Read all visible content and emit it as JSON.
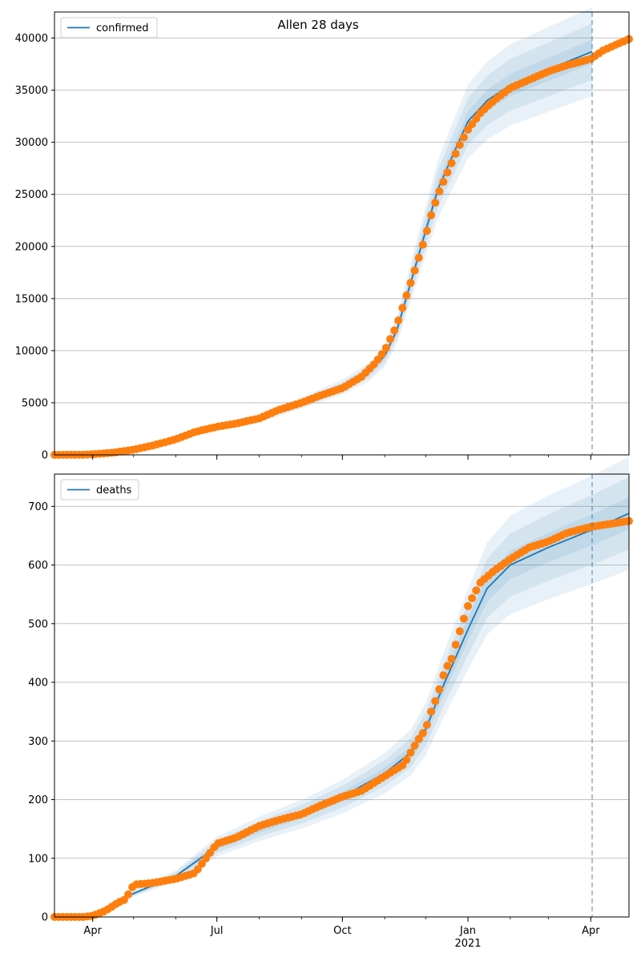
{
  "title": "Allen 28 days",
  "colors": {
    "model_line": "#1f77b4",
    "observed": "#ff7f0e",
    "band": "#1f77b4",
    "grid": "#b0b0b0",
    "forecast_line": "#1f77b4"
  },
  "x_ticks": [
    {
      "date": "2020-04-01",
      "label": "Apr",
      "sublabel": ""
    },
    {
      "date": "2020-07-01",
      "label": "Jul",
      "sublabel": ""
    },
    {
      "date": "2020-10-01",
      "label": "Oct",
      "sublabel": ""
    },
    {
      "date": "2021-01-01",
      "label": "Jan",
      "sublabel": "2021"
    },
    {
      "date": "2021-04-01",
      "label": "Apr",
      "sublabel": ""
    }
  ],
  "chart_data": [
    {
      "type": "line",
      "legend": "confirmed",
      "legend_position": "upper-left",
      "grid": "horizontal",
      "xlim": [
        "2020-03-04",
        "2021-04-29"
      ],
      "ylim": [
        0,
        42500
      ],
      "yticks": [
        0,
        5000,
        10000,
        15000,
        20000,
        25000,
        30000,
        35000,
        40000
      ],
      "forecast_start": "2021-04-02",
      "model": {
        "x": [
          "2020-03-04",
          "2020-04-01",
          "2020-05-01",
          "2020-06-01",
          "2020-07-01",
          "2020-08-01",
          "2020-09-01",
          "2020-10-01",
          "2020-10-21",
          "2020-11-01",
          "2020-11-10",
          "2020-11-20",
          "2020-12-01",
          "2020-12-10",
          "2020-12-20",
          "2021-01-01",
          "2021-01-15",
          "2021-02-01",
          "2021-03-01",
          "2021-04-02"
        ],
        "y": [
          0,
          60,
          500,
          1500,
          2700,
          3500,
          5000,
          6500,
          8000,
          9500,
          12000,
          16500,
          21500,
          25500,
          28500,
          32000,
          34000,
          35500,
          37000,
          38700
        ],
        "band_widths": [
          [
            0.03,
            0.07,
            0.11
          ],
          [
            0.03,
            0.07,
            0.11
          ],
          [
            0.03,
            0.07,
            0.11
          ],
          [
            0.03,
            0.07,
            0.11
          ],
          [
            0.03,
            0.07,
            0.11
          ]
        ]
      },
      "observed": {
        "x": [
          "2020-03-04",
          "2020-03-25",
          "2020-04-01",
          "2020-04-15",
          "2020-05-01",
          "2020-05-15",
          "2020-06-01",
          "2020-06-15",
          "2020-07-01",
          "2020-07-15",
          "2020-08-01",
          "2020-08-15",
          "2020-09-01",
          "2020-09-15",
          "2020-10-01",
          "2020-10-15",
          "2020-10-25",
          "2020-11-01",
          "2020-11-10",
          "2020-11-15",
          "2020-11-20",
          "2020-11-25",
          "2020-12-01",
          "2020-12-05",
          "2020-12-10",
          "2020-12-15",
          "2020-12-20",
          "2020-12-25",
          "2021-01-01",
          "2021-01-10",
          "2021-01-20",
          "2021-02-01",
          "2021-02-15",
          "2021-03-01",
          "2021-03-15",
          "2021-04-01",
          "2021-04-10",
          "2021-04-20",
          "2021-04-29"
        ],
        "y": [
          0,
          10,
          60,
          200,
          500,
          900,
          1500,
          2200,
          2700,
          3000,
          3500,
          4300,
          5000,
          5700,
          6400,
          7500,
          8800,
          10000,
          12500,
          14500,
          16500,
          18500,
          21000,
          23000,
          25000,
          26500,
          28000,
          29500,
          31200,
          32800,
          34000,
          35200,
          36000,
          36800,
          37400,
          38000,
          38800,
          39400,
          39900
        ]
      }
    },
    {
      "type": "line",
      "legend": "deaths",
      "legend_position": "upper-left",
      "grid": "horizontal",
      "xlim": [
        "2020-03-04",
        "2021-04-29"
      ],
      "ylim": [
        0,
        755
      ],
      "yticks": [
        0,
        100,
        200,
        300,
        400,
        500,
        600,
        700
      ],
      "forecast_start": "2021-04-02",
      "model": {
        "x": [
          "2020-03-04",
          "2020-04-01",
          "2020-04-15",
          "2020-05-01",
          "2020-06-01",
          "2020-07-01",
          "2020-08-01",
          "2020-09-01",
          "2020-10-01",
          "2020-11-01",
          "2020-11-20",
          "2020-12-01",
          "2020-12-15",
          "2021-01-01",
          "2021-01-15",
          "2021-02-01",
          "2021-03-01",
          "2021-04-02",
          "2021-04-29"
        ],
        "y": [
          0,
          5,
          20,
          40,
          70,
          120,
          150,
          175,
          205,
          245,
          280,
          320,
          400,
          490,
          560,
          600,
          630,
          660,
          688
        ],
        "band_widths": [
          [
            0.04,
            0.09,
            0.14
          ]
        ]
      },
      "observed": {
        "x": [
          "2020-03-04",
          "2020-03-25",
          "2020-04-01",
          "2020-04-10",
          "2020-04-20",
          "2020-04-25",
          "2020-05-01",
          "2020-05-15",
          "2020-06-01",
          "2020-06-15",
          "2020-07-01",
          "2020-07-15",
          "2020-08-01",
          "2020-08-15",
          "2020-09-01",
          "2020-09-15",
          "2020-10-01",
          "2020-10-15",
          "2020-11-01",
          "2020-11-15",
          "2020-11-25",
          "2020-12-01",
          "2020-12-05",
          "2020-12-10",
          "2020-12-15",
          "2020-12-20",
          "2020-12-25",
          "2021-01-01",
          "2021-01-10",
          "2021-01-20",
          "2021-02-01",
          "2021-02-15",
          "2021-03-01",
          "2021-03-15",
          "2021-04-01",
          "2021-04-15",
          "2021-04-29"
        ],
        "y": [
          0,
          0,
          2,
          10,
          25,
          30,
          55,
          58,
          65,
          75,
          125,
          135,
          155,
          165,
          175,
          190,
          205,
          215,
          240,
          260,
          300,
          320,
          350,
          380,
          420,
          440,
          480,
          530,
          570,
          590,
          610,
          630,
          640,
          655,
          665,
          670,
          675
        ]
      }
    }
  ]
}
